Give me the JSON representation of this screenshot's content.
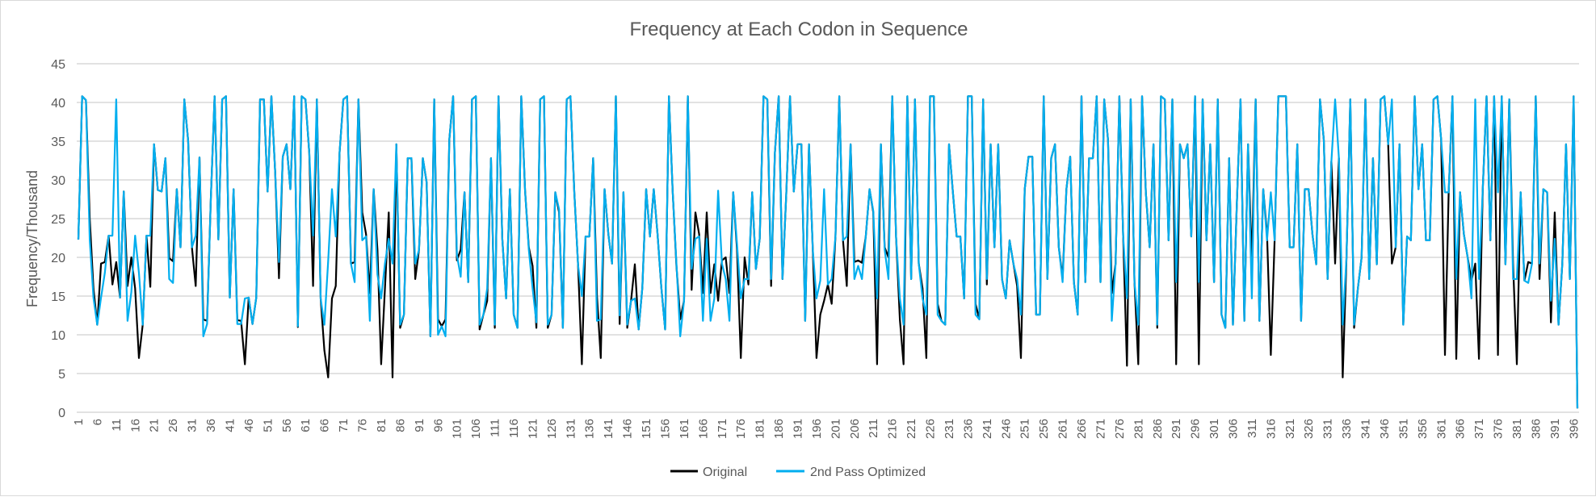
{
  "chart_data": {
    "type": "line",
    "title": "Frequency at Each Codon in Sequence",
    "xlabel": "",
    "ylabel": "Frequency/Thousand",
    "ylim": [
      0,
      45
    ],
    "yticks": [
      0,
      5,
      10,
      15,
      20,
      25,
      30,
      35,
      40,
      45
    ],
    "x_start": 1,
    "x_end": 397,
    "x_tick_step": 5,
    "grid": "horizontal",
    "legend_position": "bottom",
    "colors": {
      "Original": "#000000",
      "2nd Pass Optimized": "#00AEEF",
      "grid": "#d9d9d9"
    },
    "series": [
      {
        "name": "Original",
        "values": [
          22.3,
          40.8,
          40.3,
          25,
          16,
          11.3,
          19.2,
          19.4,
          22.8,
          16.5,
          19.4,
          14.8,
          28.5,
          16.3,
          20,
          16,
          7,
          11.3,
          22.8,
          16.2,
          34.6,
          28.7,
          28.5,
          32.8,
          19.9,
          19.5,
          28.8,
          21.3,
          40.4,
          35.1,
          21.3,
          16.3,
          32.9,
          12,
          11.8,
          27.5,
          40.8,
          22.3,
          40.4,
          40.8,
          14.8,
          28.8,
          11.9,
          11.8,
          6.2,
          14.8,
          11.4,
          14.8,
          40.4,
          40.4,
          28.5,
          40.8,
          31,
          17.3,
          33,
          34.6,
          28.8,
          40.8,
          11,
          40.8,
          40.4,
          33.5,
          16.3,
          40.4,
          14.7,
          8,
          4.5,
          14.7,
          16.3,
          33.5,
          40.4,
          40.8,
          19.2,
          19.4,
          40.4,
          25.8,
          23,
          15.4,
          28.8,
          21,
          6.2,
          16,
          25.8,
          4.5,
          34.6,
          10.9,
          12.6,
          32.8,
          32.8,
          17.2,
          21,
          32.8,
          29.7,
          9.8,
          40.4,
          12,
          11.1,
          12,
          35.2,
          40.8,
          19.6,
          21,
          28.4,
          16.8,
          40.4,
          40.8,
          10.7,
          12.6,
          14.4,
          32.8,
          10.9,
          40.8,
          22.4,
          14.7,
          28.8,
          12.6,
          10.9,
          40.8,
          28.6,
          21.3,
          18.9,
          10.9,
          40.4,
          40.8,
          10.9,
          12.6,
          28.4,
          25.8,
          10.9,
          40.4,
          40.8,
          28.5,
          19,
          6.2,
          22.7,
          22.7,
          32.8,
          15,
          7,
          28.8,
          23,
          19.2,
          40.8,
          11.4,
          28.4,
          10.9,
          14.4,
          19.1,
          10.7,
          16.1,
          28.8,
          22.7,
          28.8,
          23,
          16.1,
          10.7,
          40.8,
          28.6,
          18.9,
          12,
          14.4,
          40.8,
          15.8,
          25.8,
          23,
          15.4,
          25.8,
          15.4,
          19.1,
          14.4,
          19.6,
          20,
          15.4,
          28.4,
          21,
          7,
          20,
          16.5,
          28.4,
          18.5,
          22.4,
          40.8,
          40.4,
          16.3,
          33.5,
          40.8,
          17.2,
          28,
          40.8,
          28.5,
          34.6,
          34.6,
          11.8,
          34.6,
          21,
          7,
          12.6,
          14.4,
          16.5,
          14,
          22.7,
          40.8,
          22.2,
          16.3,
          34.6,
          19.4,
          19.6,
          19.3,
          22.7,
          28.8,
          25.8,
          6.2,
          34.6,
          21.3,
          20,
          40.8,
          22.7,
          12,
          6.2,
          40.8,
          17.2,
          40.4,
          19.2,
          16,
          7,
          40.8,
          40.8,
          14,
          11.8,
          11.3,
          34.6,
          28.5,
          22.7,
          22.7,
          14.7,
          40.8,
          40.8,
          14,
          12,
          40.4,
          16.5,
          34.6,
          21.3,
          34.6,
          17.2,
          14.7,
          22.2,
          19.2,
          16.3,
          7,
          28.8,
          33,
          33,
          12.6,
          12.6,
          40.8,
          17.2,
          32.8,
          34.6,
          21.3,
          17.3,
          28.8,
          33,
          16.8,
          12.6,
          40.8,
          16.8,
          32.8,
          32.8,
          40.8,
          16.8,
          40.4,
          35.2,
          15.4,
          19.2,
          40.8,
          22.7,
          6,
          40.4,
          16.8,
          6.2,
          40.8,
          28.3,
          21.3,
          34.6,
          10.9,
          40.8,
          40.4,
          22.2,
          40.4,
          6.2,
          34.6,
          32.8,
          34.6,
          22.7,
          40.8,
          6.2,
          40.4,
          22.2,
          34.6,
          16.8,
          40.4,
          12.6,
          10.9,
          32.8,
          11.3,
          26.5,
          40.4,
          11.8,
          34.6,
          19.2,
          40.4,
          11.8,
          28.8,
          23,
          7.4,
          22.2,
          40.8,
          40.8,
          40.8,
          21.3,
          21.3,
          34.6,
          11.8,
          28.8,
          28.8,
          23,
          19.1,
          40.4,
          35.2,
          17.2,
          32.4,
          19.2,
          32.8,
          4.5,
          20,
          40.4,
          10.9,
          16,
          20,
          40.4,
          17.2,
          32.8,
          19.1,
          40.4,
          40.8,
          34.6,
          19.2,
          21.3,
          34.6,
          11.3,
          22.7,
          22.2,
          40.8,
          28.8,
          34.6,
          22.2,
          22.2,
          40.4,
          40.8,
          35.2,
          7.4,
          28.4,
          40.8,
          6.9,
          28.4,
          23,
          20,
          17,
          19.2,
          6.9,
          28.8,
          40.8,
          22.2,
          40.8,
          7.4,
          40.8,
          19.1,
          40.4,
          19.2,
          6.2,
          28.4,
          17,
          19.4,
          19.2,
          40.8,
          17.2,
          28.8,
          28.4,
          11.6,
          25.8,
          11.3,
          19.2,
          34.6,
          17.2,
          40.8,
          0.5
        ]
      },
      {
        "name": "2nd Pass Optimized",
        "values": [
          22.3,
          40.8,
          40.3,
          22.3,
          14.8,
          11.3,
          14.8,
          18,
          22.8,
          22.8,
          40.4,
          14.8,
          28.5,
          11.8,
          15.5,
          22.8,
          18,
          11.3,
          22.8,
          22.8,
          34.6,
          28.7,
          28.5,
          32.8,
          17.2,
          16.7,
          28.8,
          21.3,
          40.4,
          35.1,
          21.3,
          22.8,
          32.9,
          9.8,
          11.4,
          27.5,
          40.8,
          22.3,
          40.4,
          40.8,
          14.8,
          28.8,
          11.4,
          11.4,
          14.7,
          14.8,
          11.4,
          14.8,
          40.4,
          40.4,
          28.5,
          40.8,
          31,
          19.4,
          33,
          34.6,
          28.8,
          40.8,
          11.1,
          40.8,
          40.4,
          33.5,
          22.8,
          40.4,
          14.7,
          11.3,
          19.5,
          28.8,
          22.7,
          33.5,
          40.4,
          40.8,
          19.2,
          16.8,
          40.4,
          22.2,
          22.7,
          11.8,
          28.8,
          17.8,
          14.7,
          19.2,
          22.4,
          19.2,
          34.6,
          11.3,
          12.6,
          32.8,
          32.8,
          19.2,
          21,
          32.8,
          29.7,
          9.8,
          40.4,
          10,
          11.1,
          9.8,
          35.2,
          40.8,
          20.3,
          17.5,
          28.4,
          16.8,
          40.4,
          40.8,
          11.3,
          12.6,
          16,
          32.8,
          11.3,
          40.8,
          22.4,
          14.7,
          28.8,
          12.6,
          10.9,
          40.8,
          28.6,
          21,
          16,
          11.6,
          40.4,
          40.8,
          11.3,
          12.6,
          28.4,
          26.2,
          10.9,
          40.4,
          40.8,
          28.5,
          19,
          15,
          22.7,
          22.7,
          32.8,
          11.8,
          12,
          28.8,
          23,
          19.2,
          40.8,
          12.5,
          28.4,
          11.3,
          14.4,
          14.7,
          10.7,
          16.1,
          28.8,
          22.7,
          28.8,
          23,
          16.1,
          10.7,
          40.8,
          28.6,
          19.2,
          9.8,
          14.4,
          40.8,
          18.5,
          22.4,
          22.7,
          11.8,
          22.4,
          11.8,
          14.7,
          28.6,
          19.2,
          17.2,
          11.8,
          28.4,
          21.7,
          14.7,
          17.2,
          17.2,
          28.4,
          18.5,
          22.4,
          40.8,
          40.4,
          17.2,
          33.5,
          40.8,
          17.2,
          28,
          40.8,
          28.5,
          34.6,
          34.6,
          11.8,
          34.6,
          21,
          14.7,
          17,
          28.8,
          16.5,
          17.2,
          22.7,
          40.8,
          22.2,
          22.7,
          34.6,
          17.2,
          18.9,
          17.2,
          22.7,
          28.8,
          26,
          14.7,
          34.6,
          21,
          17.2,
          40.8,
          22.7,
          14.7,
          11.3,
          40.8,
          17.2,
          40.4,
          19.2,
          14.7,
          12.6,
          40.8,
          40.8,
          12.6,
          11.8,
          11.3,
          34.6,
          28.5,
          22.7,
          22.7,
          14.7,
          40.8,
          40.8,
          12.6,
          12,
          40.4,
          17.2,
          34.6,
          21.3,
          34.6,
          17.2,
          14.7,
          22.2,
          19.2,
          17.2,
          12.6,
          28.8,
          33,
          33,
          12.6,
          12.6,
          40.8,
          17.2,
          32.8,
          34.6,
          21.3,
          16.8,
          28.8,
          33,
          16.8,
          12.6,
          40.8,
          16.8,
          32.8,
          32.8,
          40.8,
          16.8,
          40.4,
          35.2,
          11.8,
          19.2,
          40.8,
          22.7,
          14.7,
          40.4,
          16.8,
          11.3,
          40.8,
          28.3,
          21.3,
          34.6,
          11.3,
          40.8,
          40.4,
          22.2,
          40.4,
          16.8,
          34.6,
          32.8,
          34.6,
          22.7,
          40.8,
          16.8,
          40.4,
          22.2,
          34.6,
          16.8,
          40.4,
          12.6,
          10.9,
          32.8,
          11.3,
          26.5,
          40.4,
          11.8,
          34.6,
          14.7,
          40.4,
          11.8,
          28.8,
          22.2,
          28.4,
          22.2,
          40.8,
          40.8,
          40.8,
          21.3,
          21.3,
          34.6,
          11.8,
          28.8,
          28.8,
          23,
          19.1,
          40.4,
          35.2,
          17.2,
          32.4,
          40.4,
          32.8,
          11.3,
          20,
          40.4,
          11.3,
          16,
          20,
          40.4,
          17.2,
          32.8,
          19.1,
          40.4,
          40.8,
          34.6,
          40.4,
          21.3,
          34.6,
          11.3,
          22.7,
          22.2,
          40.8,
          28.8,
          34.6,
          22.2,
          22.2,
          40.4,
          40.8,
          35.2,
          28.4,
          28.4,
          40.8,
          17.2,
          28.4,
          23,
          20,
          14.7,
          40.4,
          17.2,
          28.8,
          40.8,
          22.2,
          40.8,
          28.4,
          40.8,
          19.1,
          40.4,
          17.2,
          17.2,
          28.4,
          17,
          16.7,
          19.2,
          40.8,
          19.2,
          28.8,
          28.4,
          14.4,
          22.4,
          11.3,
          19.2,
          34.6,
          17.2,
          40.8,
          0.5
        ]
      }
    ]
  }
}
